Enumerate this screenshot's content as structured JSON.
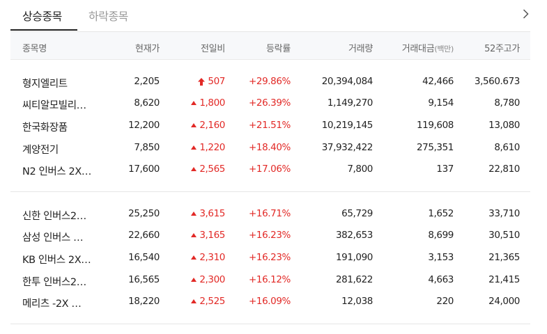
{
  "tabs": {
    "active_label": "상승종목",
    "inactive_label": "하락종목"
  },
  "more_icon": "chevron-right-icon",
  "colors": {
    "up": "#e22926",
    "header_bg": "#f7f8fa"
  },
  "columns": {
    "name": "종목명",
    "price": "현재가",
    "change": "전일비",
    "rate": "등락률",
    "volume": "거래량",
    "amount": "거래대금",
    "amount_unit": "(백만)",
    "high52": "52주고가"
  },
  "group1": [
    {
      "name": "형지엘리트",
      "price": "2,205",
      "change": "507",
      "change_icon": "upper-limit-arrow-icon",
      "rate": "+29.86%",
      "volume": "20,394,084",
      "amount": "42,466",
      "high52": "3,560.673"
    },
    {
      "name": "씨티알모빌리…",
      "price": "8,620",
      "change": "1,800",
      "change_icon": "up-triangle-icon",
      "rate": "+26.39%",
      "volume": "1,149,270",
      "amount": "9,154",
      "high52": "8,780"
    },
    {
      "name": "한국화장품",
      "price": "12,200",
      "change": "2,160",
      "change_icon": "up-triangle-icon",
      "rate": "+21.51%",
      "volume": "10,219,145",
      "amount": "119,608",
      "high52": "13,080"
    },
    {
      "name": "계양전기",
      "price": "7,850",
      "change": "1,220",
      "change_icon": "up-triangle-icon",
      "rate": "+18.40%",
      "volume": "37,932,422",
      "amount": "275,351",
      "high52": "8,610"
    },
    {
      "name": "N2 인버스 2X…",
      "price": "17,600",
      "change": "2,565",
      "change_icon": "up-triangle-icon",
      "rate": "+17.06%",
      "volume": "7,800",
      "amount": "137",
      "high52": "22,810"
    }
  ],
  "group2": [
    {
      "name": "신한 인버스2…",
      "price": "25,250",
      "change": "3,615",
      "change_icon": "up-triangle-icon",
      "rate": "+16.71%",
      "volume": "65,729",
      "amount": "1,652",
      "high52": "33,710"
    },
    {
      "name": "삼성 인버스 …",
      "price": "22,660",
      "change": "3,165",
      "change_icon": "up-triangle-icon",
      "rate": "+16.23%",
      "volume": "382,653",
      "amount": "8,699",
      "high52": "30,510"
    },
    {
      "name": "KB 인버스 2X…",
      "price": "16,540",
      "change": "2,310",
      "change_icon": "up-triangle-icon",
      "rate": "+16.23%",
      "volume": "191,090",
      "amount": "3,153",
      "high52": "21,365"
    },
    {
      "name": "한투 인버스2…",
      "price": "16,565",
      "change": "2,300",
      "change_icon": "up-triangle-icon",
      "rate": "+16.12%",
      "volume": "281,622",
      "amount": "4,663",
      "high52": "21,415"
    },
    {
      "name": "메리츠 -2X …",
      "price": "18,220",
      "change": "2,525",
      "change_icon": "up-triangle-icon",
      "rate": "+16.09%",
      "volume": "12,038",
      "amount": "220",
      "high52": "24,000"
    }
  ]
}
